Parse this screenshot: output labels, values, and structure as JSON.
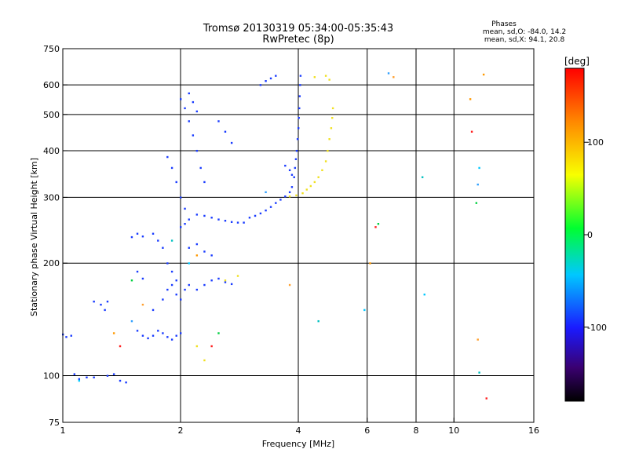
{
  "chart_data": {
    "type": "scatter",
    "title": "Tromsø 20130319 05:34:00-05:35:43",
    "subtitle": "RwPretec (8p)",
    "phase_box": {
      "heading": "Phases",
      "line1": "mean, sd,O: -84.0, 14.2",
      "line2": "mean, sd,X:  94.1, 20.8"
    },
    "xlabel": "Frequency [MHz]",
    "ylabel": "Stationary phase Virtual Height [km]",
    "x_scale": "log2",
    "y_scale": "log",
    "xlim": [
      1,
      16
    ],
    "ylim": [
      75,
      750
    ],
    "x_ticks": [
      1,
      2,
      4,
      6,
      8,
      10,
      16
    ],
    "y_ticks": [
      75,
      100,
      200,
      300,
      400,
      500,
      600,
      750
    ],
    "x_gridlines": [
      2,
      4,
      6,
      8,
      10
    ],
    "y_gridlines": [
      100,
      200,
      300,
      400,
      500,
      600
    ],
    "colorbar": {
      "label": "[deg]",
      "range": [
        -180,
        180
      ],
      "ticks": [
        100,
        0,
        -100
      ]
    },
    "colors": {
      "o_mode": "#1a3cff",
      "x_mode": "#f0e020",
      "axes": "#000000"
    },
    "series": [
      {
        "points": [
          [
            1.0,
            129
          ],
          [
            1.02,
            127
          ],
          [
            1.05,
            128
          ],
          [
            1.07,
            101
          ],
          [
            1.1,
            98
          ],
          [
            1.15,
            99
          ],
          [
            1.2,
            99
          ],
          [
            1.3,
            100
          ],
          [
            1.35,
            101
          ],
          [
            1.4,
            97
          ],
          [
            1.45,
            96
          ],
          [
            1.2,
            158
          ],
          [
            1.25,
            155
          ],
          [
            1.28,
            150
          ],
          [
            1.3,
            158
          ],
          [
            1.5,
            235
          ],
          [
            1.55,
            240
          ],
          [
            1.6,
            236
          ],
          [
            1.55,
            190
          ],
          [
            1.6,
            182
          ],
          [
            1.7,
            150
          ],
          [
            1.55,
            132
          ],
          [
            1.6,
            128
          ],
          [
            1.65,
            126
          ],
          [
            1.7,
            128
          ],
          [
            1.75,
            132
          ],
          [
            1.8,
            130
          ],
          [
            1.85,
            127
          ],
          [
            1.9,
            125
          ],
          [
            1.95,
            128
          ],
          [
            2.0,
            130
          ],
          [
            1.7,
            240
          ],
          [
            1.75,
            230
          ],
          [
            1.8,
            220
          ],
          [
            1.85,
            200
          ],
          [
            1.9,
            190
          ],
          [
            1.95,
            180
          ],
          [
            1.8,
            160
          ],
          [
            1.85,
            170
          ],
          [
            1.9,
            175
          ],
          [
            1.95,
            165
          ],
          [
            2.0,
            160
          ],
          [
            2.05,
            170
          ],
          [
            2.1,
            175
          ],
          [
            1.85,
            385
          ],
          [
            1.9,
            360
          ],
          [
            1.95,
            330
          ],
          [
            2.0,
            300
          ],
          [
            2.05,
            280
          ],
          [
            2.0,
            550
          ],
          [
            2.05,
            520
          ],
          [
            2.1,
            480
          ],
          [
            2.15,
            440
          ],
          [
            2.2,
            400
          ],
          [
            2.25,
            360
          ],
          [
            2.3,
            330
          ],
          [
            2.1,
            570
          ],
          [
            2.15,
            540
          ],
          [
            2.2,
            510
          ],
          [
            2.0,
            250
          ],
          [
            2.05,
            255
          ],
          [
            2.1,
            262
          ],
          [
            2.2,
            270
          ],
          [
            2.3,
            268
          ],
          [
            2.4,
            265
          ],
          [
            2.5,
            262
          ],
          [
            2.6,
            260
          ],
          [
            2.7,
            258
          ],
          [
            2.8,
            257
          ],
          [
            2.9,
            257
          ],
          [
            2.2,
            170
          ],
          [
            2.3,
            175
          ],
          [
            2.4,
            180
          ],
          [
            2.5,
            182
          ],
          [
            2.6,
            178
          ],
          [
            2.7,
            176
          ],
          [
            2.1,
            220
          ],
          [
            2.2,
            225
          ],
          [
            2.3,
            215
          ],
          [
            2.4,
            210
          ],
          [
            2.5,
            480
          ],
          [
            2.6,
            450
          ],
          [
            2.7,
            420
          ],
          [
            3.0,
            265
          ],
          [
            3.1,
            268
          ],
          [
            3.2,
            272
          ],
          [
            3.3,
            277
          ],
          [
            3.4,
            283
          ],
          [
            3.5,
            290
          ],
          [
            3.6,
            296
          ],
          [
            3.7,
            302
          ],
          [
            3.8,
            310
          ],
          [
            3.85,
            320
          ],
          [
            3.9,
            340
          ],
          [
            3.92,
            360
          ],
          [
            3.94,
            380
          ],
          [
            3.96,
            400
          ],
          [
            3.98,
            430
          ],
          [
            4.0,
            460
          ],
          [
            4.01,
            490
          ],
          [
            4.02,
            520
          ],
          [
            4.03,
            560
          ],
          [
            4.04,
            600
          ],
          [
            4.05,
            635
          ],
          [
            3.2,
            600
          ],
          [
            3.3,
            615
          ],
          [
            3.4,
            625
          ],
          [
            3.5,
            635
          ],
          [
            3.7,
            365
          ],
          [
            3.8,
            355
          ],
          [
            3.85,
            345
          ]
        ]
      },
      {
        "points": [
          [
            3.8,
            302
          ],
          [
            3.95,
            304
          ],
          [
            4.1,
            308
          ],
          [
            4.2,
            315
          ],
          [
            4.3,
            322
          ],
          [
            4.4,
            330
          ],
          [
            4.5,
            340
          ],
          [
            4.6,
            355
          ],
          [
            4.7,
            375
          ],
          [
            4.75,
            400
          ],
          [
            4.8,
            430
          ],
          [
            4.85,
            460
          ],
          [
            4.88,
            490
          ],
          [
            4.9,
            520
          ],
          [
            4.4,
            630
          ],
          [
            4.7,
            635
          ],
          [
            4.8,
            620
          ],
          [
            2.6,
            180
          ],
          [
            2.8,
            185
          ],
          [
            2.2,
            120
          ],
          [
            2.3,
            110
          ]
        ]
      },
      {
        "points": [
          [
            1.1,
            97
          ],
          [
            1.35,
            130
          ],
          [
            1.4,
            120
          ],
          [
            1.5,
            180
          ],
          [
            1.5,
            140
          ],
          [
            1.6,
            155
          ],
          [
            1.9,
            230
          ],
          [
            2.1,
            200
          ],
          [
            2.2,
            210
          ],
          [
            2.4,
            120
          ],
          [
            2.5,
            130
          ],
          [
            3.3,
            310
          ],
          [
            3.8,
            175
          ],
          [
            4.5,
            140
          ],
          [
            5.9,
            150
          ],
          [
            6.1,
            200
          ],
          [
            6.3,
            250
          ],
          [
            6.4,
            255
          ],
          [
            6.8,
            645
          ],
          [
            7.0,
            630
          ],
          [
            8.3,
            340
          ],
          [
            8.4,
            165
          ],
          [
            11.0,
            550
          ],
          [
            11.1,
            450
          ],
          [
            11.4,
            290
          ],
          [
            11.5,
            325
          ],
          [
            11.5,
            125
          ],
          [
            11.6,
            102
          ],
          [
            11.6,
            360
          ],
          [
            11.9,
            640
          ],
          [
            12.1,
            87
          ]
        ]
      }
    ]
  }
}
